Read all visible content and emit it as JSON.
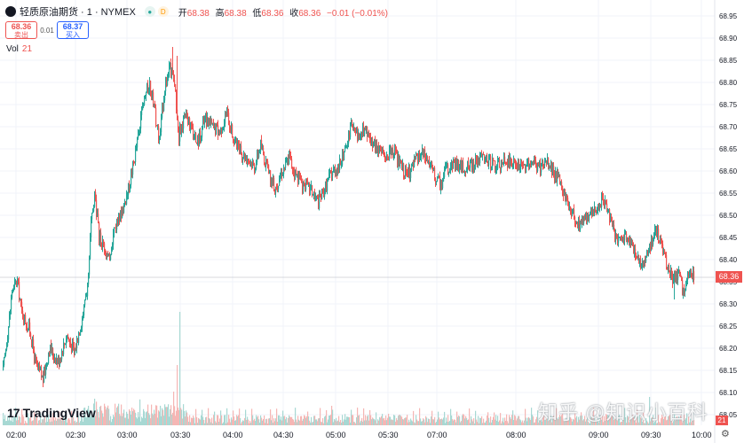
{
  "header": {
    "symbol": "轻质原油期货 · 1 · NYMEX",
    "open_label": "开",
    "open": "68.38",
    "high_label": "高",
    "high": "68.38",
    "low_label": "低",
    "low": "68.36",
    "close_label": "收",
    "close": "68.36",
    "change": "−0.01 (−0.01%)"
  },
  "trade": {
    "sell_price": "68.36",
    "sell_label": "卖出",
    "spread": "0.01",
    "buy_price": "68.37",
    "buy_label": "买入"
  },
  "volume": {
    "label": "Vol",
    "value": "21"
  },
  "branding": {
    "logo": "TradingView",
    "watermark": "知乎 @知识小百科"
  },
  "colors": {
    "up": "#26a69a",
    "down": "#ef5350",
    "volume_up": "#a7d8d3",
    "volume_down": "#f5b6b4",
    "grid": "#f0f3fa"
  },
  "price_axis": {
    "ticks": [
      "68.95",
      "68.90",
      "68.85",
      "68.80",
      "68.75",
      "68.70",
      "68.65",
      "68.60",
      "68.55",
      "68.50",
      "68.45",
      "68.40",
      "68.35",
      "68.30",
      "68.25",
      "68.20",
      "68.15",
      "68.10",
      "68.05"
    ],
    "last_price": "68.36",
    "last_volume": "21"
  },
  "time_axis": {
    "ticks": [
      "02:00",
      "02:30",
      "03:00",
      "03:30",
      "04:00",
      "04:30",
      "05:00",
      "05:30",
      "07:00",
      "08:00",
      "09:00",
      "09:30",
      "10:00"
    ]
  },
  "chart_data": {
    "type": "candlestick",
    "interval": "1 minute",
    "y_range": [
      68.05,
      68.95
    ],
    "anchors": [
      [
        0,
        68.15
      ],
      [
        6,
        68.25
      ],
      [
        10,
        68.33
      ],
      [
        16,
        68.35
      ],
      [
        21,
        68.28
      ],
      [
        30,
        68.24
      ],
      [
        37,
        68.16
      ],
      [
        45,
        68.13
      ],
      [
        52,
        68.2
      ],
      [
        62,
        68.17
      ],
      [
        72,
        68.23
      ],
      [
        80,
        68.19
      ],
      [
        88,
        68.26
      ],
      [
        95,
        68.33
      ],
      [
        99,
        68.48
      ],
      [
        103,
        68.55
      ],
      [
        108,
        68.45
      ],
      [
        114,
        68.43
      ],
      [
        119,
        68.4
      ],
      [
        125,
        68.47
      ],
      [
        132,
        68.5
      ],
      [
        140,
        68.55
      ],
      [
        147,
        68.62
      ],
      [
        154,
        68.7
      ],
      [
        160,
        68.77
      ],
      [
        165,
        68.8
      ],
      [
        170,
        68.74
      ],
      [
        176,
        68.67
      ],
      [
        182,
        68.79
      ],
      [
        188,
        68.83
      ],
      [
        193,
        68.8
      ],
      [
        198,
        68.68
      ],
      [
        205,
        68.73
      ],
      [
        212,
        68.69
      ],
      [
        220,
        68.67
      ],
      [
        228,
        68.72
      ],
      [
        236,
        68.7
      ],
      [
        244,
        68.69
      ],
      [
        252,
        68.73
      ],
      [
        260,
        68.67
      ],
      [
        268,
        68.64
      ],
      [
        276,
        68.63
      ],
      [
        283,
        68.61
      ],
      [
        290,
        68.66
      ],
      [
        298,
        68.6
      ],
      [
        306,
        68.56
      ],
      [
        314,
        68.6
      ],
      [
        322,
        68.63
      ],
      [
        330,
        68.59
      ],
      [
        338,
        68.57
      ],
      [
        346,
        68.56
      ],
      [
        355,
        68.53
      ],
      [
        362,
        68.56
      ],
      [
        370,
        68.6
      ],
      [
        378,
        68.61
      ],
      [
        386,
        68.65
      ],
      [
        392,
        68.7
      ],
      [
        400,
        68.68
      ],
      [
        408,
        68.69
      ],
      [
        416,
        68.66
      ],
      [
        424,
        68.65
      ],
      [
        432,
        68.63
      ],
      [
        440,
        68.64
      ],
      [
        448,
        68.61
      ],
      [
        456,
        68.59
      ],
      [
        464,
        68.62
      ],
      [
        472,
        68.64
      ],
      [
        480,
        68.62
      ],
      [
        488,
        68.58
      ],
      [
        494,
        68.57
      ],
      [
        500,
        68.61
      ],
      [
        508,
        68.62
      ],
      [
        516,
        68.61
      ],
      [
        524,
        68.61
      ],
      [
        532,
        68.62
      ],
      [
        540,
        68.63
      ],
      [
        548,
        68.62
      ],
      [
        556,
        68.61
      ],
      [
        564,
        68.62
      ],
      [
        572,
        68.62
      ],
      [
        580,
        68.61
      ],
      [
        588,
        68.61
      ],
      [
        596,
        68.62
      ],
      [
        604,
        68.61
      ],
      [
        612,
        68.62
      ],
      [
        620,
        68.6
      ],
      [
        626,
        68.58
      ],
      [
        632,
        68.55
      ],
      [
        640,
        68.51
      ],
      [
        648,
        68.48
      ],
      [
        656,
        68.5
      ],
      [
        664,
        68.5
      ],
      [
        670,
        68.52
      ],
      [
        676,
        68.54
      ],
      [
        682,
        68.5
      ],
      [
        688,
        68.46
      ],
      [
        694,
        68.44
      ],
      [
        700,
        68.45
      ],
      [
        706,
        68.44
      ],
      [
        712,
        68.42
      ],
      [
        718,
        68.39
      ],
      [
        724,
        68.41
      ],
      [
        730,
        68.44
      ],
      [
        736,
        68.46
      ],
      [
        742,
        68.43
      ],
      [
        748,
        68.38
      ],
      [
        754,
        68.36
      ],
      [
        760,
        68.37
      ],
      [
        766,
        68.33
      ],
      [
        772,
        68.36
      ],
      [
        778,
        68.36
      ]
    ],
    "spikes": [
      [
        150,
        68.66
      ],
      [
        191,
        68.88
      ],
      [
        196,
        68.86
      ],
      [
        358,
        68.53
      ],
      [
        392,
        68.72
      ],
      [
        676,
        68.55
      ],
      [
        734,
        68.48
      ],
      [
        756,
        68.31
      ]
    ],
    "volume_spikes": [
      [
        196,
        60
      ],
      [
        199,
        128
      ],
      [
        192,
        38
      ],
      [
        103,
        30
      ],
      [
        92,
        20
      ],
      [
        370,
        22
      ],
      [
        728,
        24
      ]
    ],
    "seed": 17
  }
}
